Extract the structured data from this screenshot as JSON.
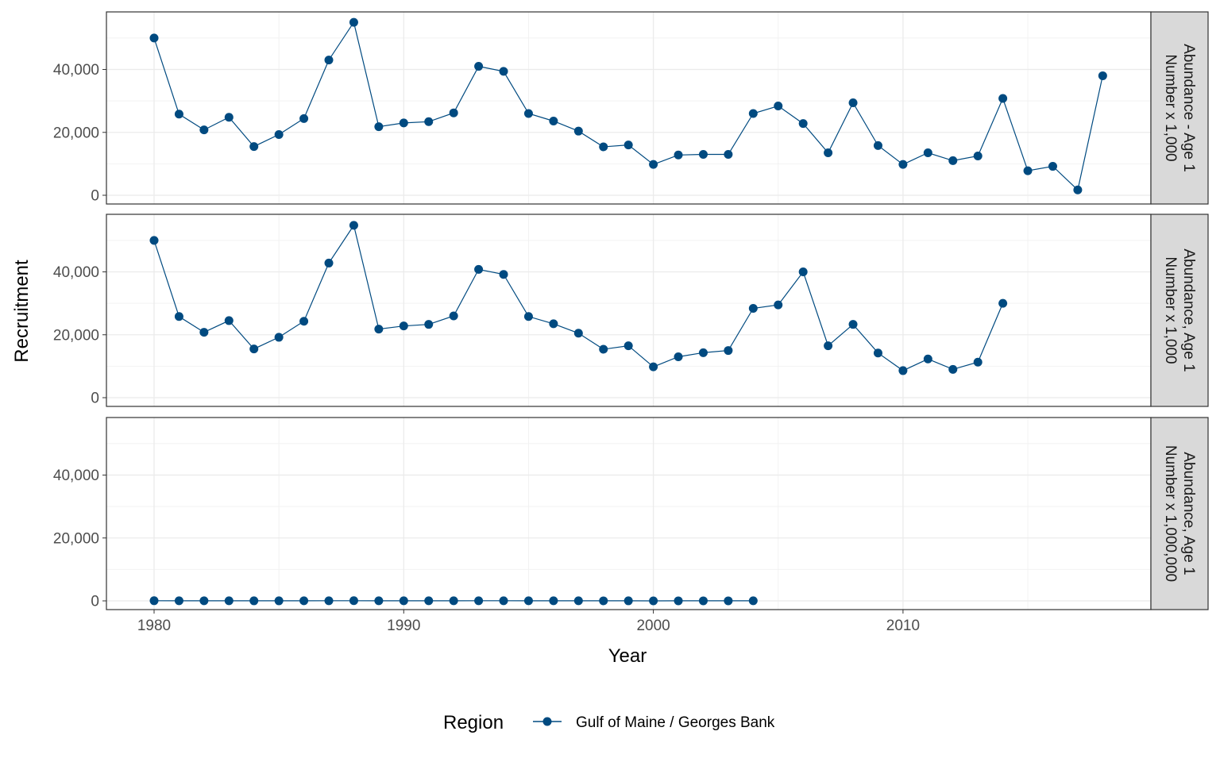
{
  "chart_data": {
    "type": "line",
    "layout": "faceted-vertical",
    "xlabel": "Year",
    "ylabel": "Recruitment",
    "xlim": [
      1978.2,
      1999.4
    ],
    "ylim": [
      -2800,
      58000
    ],
    "x_ticks": [
      1980,
      1990,
      2000,
      2010
    ],
    "y_ticks": [
      0,
      20000,
      40000
    ],
    "y_tick_labels": [
      "0",
      "20,000",
      "40,000"
    ],
    "x_tick_labels": [
      "1980",
      "1990",
      "2000",
      "2010"
    ],
    "grid": true,
    "legend": {
      "title": "Region",
      "placement": "bottom",
      "entries": [
        "Gulf of Maine / Georges Bank"
      ]
    },
    "series_color": "#004a80",
    "facets": [
      {
        "strip_label_lines": [
          "Abundance - Age 1",
          "Number x 1,000"
        ],
        "series": [
          {
            "name": "Gulf of Maine / Georges Bank",
            "x": [
              1980,
              1981,
              1982,
              1983,
              1984,
              1985,
              1986,
              1987,
              1988,
              1989,
              1990,
              1991,
              1992,
              1993,
              1994,
              1995,
              1996,
              1997,
              1998,
              1999,
              2000,
              2001,
              2002,
              2003,
              2004,
              2005,
              2006,
              2007,
              2008,
              2009,
              2010,
              2011,
              2012,
              2013,
              2014,
              2015,
              2016,
              2017,
              2018
            ],
            "y": [
              50000,
              25800,
              20800,
              24800,
              15500,
              19300,
              24400,
              43000,
              55000,
              21800,
              23000,
              23400,
              26200,
              41000,
              39400,
              26000,
              23600,
              20400,
              15400,
              16000,
              9800,
              12800,
              13000,
              13000,
              26000,
              28400,
              22800,
              13500,
              29400,
              15800,
              9800,
              13500,
              11000,
              12500,
              30800,
              7800,
              9200,
              1700,
              38000
            ]
          }
        ]
      },
      {
        "strip_label_lines": [
          "Abundance, Age 1",
          "Number x 1,000"
        ],
        "series": [
          {
            "name": "Gulf of Maine / Georges Bank",
            "x": [
              1980,
              1981,
              1982,
              1983,
              1984,
              1985,
              1986,
              1987,
              1988,
              1989,
              1990,
              1991,
              1992,
              1993,
              1994,
              1995,
              1996,
              1997,
              1998,
              1999,
              2000,
              2001,
              2002,
              2003,
              2004,
              2005,
              2006,
              2007,
              2008,
              2009,
              2010,
              2011,
              2012,
              2013,
              2014
            ],
            "y": [
              50000,
              25800,
              20800,
              24500,
              15500,
              19200,
              24300,
              42800,
              54800,
              21800,
              22800,
              23300,
              26000,
              40800,
              39200,
              25800,
              23500,
              20500,
              15400,
              16500,
              9800,
              13000,
              14300,
              15000,
              28400,
              29500,
              40000,
              16500,
              23300,
              14200,
              8600,
              12300,
              9000,
              11300,
              30000
            ]
          }
        ]
      },
      {
        "strip_label_lines": [
          "Abundance, Age 1",
          "Number x 1,000,000"
        ],
        "series": [
          {
            "name": "Gulf of Maine / Georges Bank",
            "x": [
              1980,
              1981,
              1982,
              1983,
              1984,
              1985,
              1986,
              1987,
              1988,
              1989,
              1990,
              1991,
              1992,
              1993,
              1994,
              1995,
              1996,
              1997,
              1998,
              1999,
              2000,
              2001,
              2002,
              2003,
              2004
            ],
            "y": [
              50,
              26,
              21,
              25,
              16,
              19,
              24,
              43,
              55,
              22,
              23,
              23,
              26,
              41,
              39,
              26,
              24,
              20,
              15,
              16,
              10,
              13,
              13,
              13,
              26
            ]
          }
        ]
      }
    ]
  }
}
